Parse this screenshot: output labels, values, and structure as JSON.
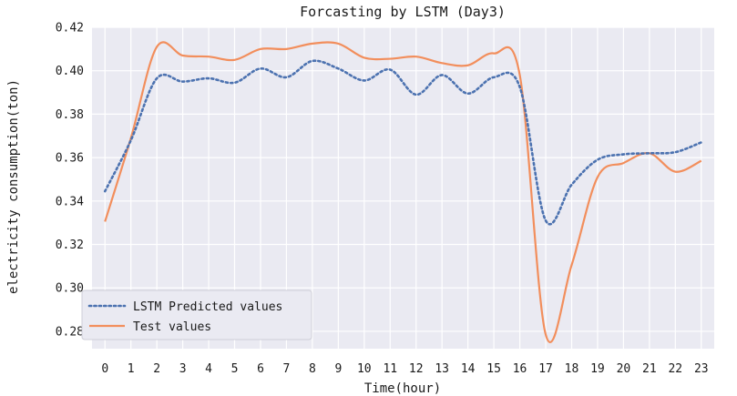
{
  "chart_data": {
    "type": "line",
    "title": "Forcasting by LSTM (Day3)",
    "xlabel": "Time(hour)",
    "ylabel": "electricity consumption(ton)",
    "x": [
      0,
      1,
      2,
      3,
      4,
      5,
      6,
      7,
      8,
      9,
      10,
      11,
      12,
      13,
      14,
      15,
      16,
      17,
      18,
      19,
      20,
      21,
      22,
      23
    ],
    "ylim": [
      0.272,
      0.42
    ],
    "yticks": [
      0.28,
      0.3,
      0.32,
      0.34,
      0.36,
      0.38,
      0.4,
      0.42
    ],
    "ytick_labels": [
      "0.28",
      "0.30",
      "0.32",
      "0.34",
      "0.36",
      "0.38",
      "0.40",
      "0.42"
    ],
    "xticks": [
      "0",
      "1",
      "2",
      "3",
      "4",
      "5",
      "6",
      "7",
      "8",
      "9",
      "10",
      "11",
      "12",
      "13",
      "14",
      "15",
      "16",
      "17",
      "18",
      "19",
      "20",
      "21",
      "22",
      "23"
    ],
    "grid": true,
    "background": "#eaeaf2",
    "legend_position": "lower-left",
    "series": [
      {
        "name": "LSTM Predicted values",
        "style": "dotted",
        "color": "#4c72b0",
        "values": [
          0.3445,
          0.368,
          0.3965,
          0.395,
          0.3965,
          0.3945,
          0.401,
          0.397,
          0.4045,
          0.401,
          0.3955,
          0.4005,
          0.389,
          0.398,
          0.3895,
          0.397,
          0.3925,
          0.331,
          0.3475,
          0.359,
          0.3615,
          0.362,
          0.3625,
          0.367
        ]
      },
      {
        "name": "Test values",
        "style": "solid",
        "color": "#f28e5c",
        "values": [
          0.3305,
          0.369,
          0.411,
          0.407,
          0.4065,
          0.405,
          0.41,
          0.41,
          0.4125,
          0.4125,
          0.406,
          0.4055,
          0.4065,
          0.4035,
          0.4025,
          0.408,
          0.398,
          0.2785,
          0.3105,
          0.351,
          0.3575,
          0.362,
          0.3535,
          0.3585
        ]
      }
    ]
  }
}
